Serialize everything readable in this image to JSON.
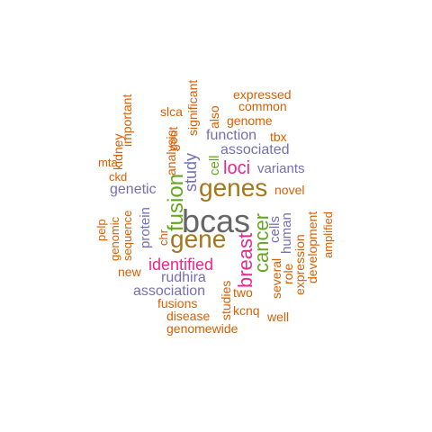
{
  "palette": {
    "orange": "#D95F02",
    "purple": "#7570B3",
    "magenta": "#E7298A",
    "green": "#66A61E",
    "brown": "#A6761D",
    "gray": "#666666"
  },
  "words": [
    {
      "text": "bcas",
      "color": "#666666"
    },
    {
      "text": "genes",
      "color": "#A6761D"
    },
    {
      "text": "gene",
      "color": "#A6761D"
    },
    {
      "text": "fusion",
      "color": "#66A61E"
    },
    {
      "text": "cancer",
      "color": "#66A61E"
    },
    {
      "text": "breast",
      "color": "#E7298A"
    },
    {
      "text": "loci",
      "color": "#E7298A"
    },
    {
      "text": "identified",
      "color": "#E7298A"
    },
    {
      "text": "study",
      "color": "#7570B3"
    },
    {
      "text": "associated",
      "color": "#7570B3"
    },
    {
      "text": "function",
      "color": "#7570B3"
    },
    {
      "text": "variants",
      "color": "#7570B3"
    },
    {
      "text": "genetic",
      "color": "#7570B3"
    },
    {
      "text": "protein",
      "color": "#7570B3"
    },
    {
      "text": "rudhira",
      "color": "#7570B3"
    },
    {
      "text": "association",
      "color": "#7570B3"
    },
    {
      "text": "cells",
      "color": "#7570B3"
    },
    {
      "text": "human",
      "color": "#7570B3"
    },
    {
      "text": "cell",
      "color": "#66A61E"
    },
    {
      "text": "expressed",
      "color": "#D95F02"
    },
    {
      "text": "common",
      "color": "#D95F02"
    },
    {
      "text": "genome",
      "color": "#D95F02"
    },
    {
      "text": "tbx",
      "color": "#D95F02"
    },
    {
      "text": "novel",
      "color": "#D95F02"
    },
    {
      "text": "slca",
      "color": "#D95F02"
    },
    {
      "text": "also",
      "color": "#D95F02"
    },
    {
      "text": "significant",
      "color": "#D95F02"
    },
    {
      "text": "important",
      "color": "#D95F02"
    },
    {
      "text": "analysis",
      "color": "#D95F02"
    },
    {
      "text": "gout",
      "color": "#D95F02"
    },
    {
      "text": "kidney",
      "color": "#D95F02"
    },
    {
      "text": "mta",
      "color": "#D95F02"
    },
    {
      "text": "ckd",
      "color": "#D95F02"
    },
    {
      "text": "pelp",
      "color": "#D95F02"
    },
    {
      "text": "genomic",
      "color": "#D95F02"
    },
    {
      "text": "sequence",
      "color": "#D95F02"
    },
    {
      "text": "chr",
      "color": "#D95F02"
    },
    {
      "text": "new",
      "color": "#D95F02"
    },
    {
      "text": "fusions",
      "color": "#D95F02"
    },
    {
      "text": "disease",
      "color": "#D95F02"
    },
    {
      "text": "genomewide",
      "color": "#D95F02"
    },
    {
      "text": "studies",
      "color": "#D95F02"
    },
    {
      "text": "two",
      "color": "#D95F02"
    },
    {
      "text": "kcnq",
      "color": "#D95F02"
    },
    {
      "text": "well",
      "color": "#D95F02"
    },
    {
      "text": "several",
      "color": "#D95F02"
    },
    {
      "text": "role",
      "color": "#D95F02"
    },
    {
      "text": "expression",
      "color": "#D95F02"
    },
    {
      "text": "development",
      "color": "#D95F02"
    },
    {
      "text": "amplified",
      "color": "#D95F02"
    }
  ]
}
